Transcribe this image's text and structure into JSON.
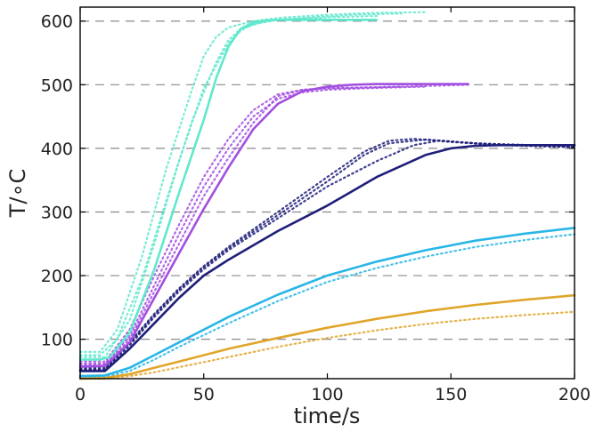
{
  "chart_data": {
    "type": "line",
    "title": "",
    "xlabel": "time/s",
    "ylabel": "T/∘C",
    "xlim": [
      0,
      200
    ],
    "ylim": [
      38,
      622
    ],
    "xticks": [
      0,
      50,
      100,
      150,
      200
    ],
    "yticks": [
      100,
      200,
      300,
      400,
      500,
      600
    ],
    "xtick_labels": [
      "0",
      "50",
      "100",
      "150",
      "200"
    ],
    "ytick_labels": [
      "100",
      "200",
      "300",
      "400",
      "500",
      "600"
    ],
    "grid": "horizontal-dashed",
    "legend": "none",
    "series": [
      {
        "color": "#5fe8cc",
        "style": "solid",
        "x": [
          0,
          8,
          12,
          20,
          30,
          40,
          50,
          55,
          60,
          65,
          70,
          75,
          80,
          90,
          100,
          110,
          120
        ],
        "y": [
          68,
          68,
          72,
          110,
          210,
          330,
          445,
          510,
          560,
          588,
          598,
          601,
          602,
          602,
          602,
          602,
          602
        ]
      },
      {
        "color": "#5fe8cc",
        "style": "dotted",
        "x": [
          0,
          8,
          15,
          25,
          35,
          45,
          50,
          55,
          60,
          70,
          80,
          100,
          120,
          140
        ],
        "y": [
          80,
          80,
          115,
          230,
          370,
          490,
          545,
          575,
          590,
          600,
          605,
          610,
          613,
          614
        ]
      },
      {
        "color": "#5fe8cc",
        "style": "dotted",
        "x": [
          0,
          8,
          15,
          25,
          35,
          45,
          55,
          60,
          65,
          75,
          90,
          110,
          130
        ],
        "y": [
          75,
          75,
          100,
          195,
          320,
          440,
          535,
          570,
          588,
          600,
          605,
          610,
          612
        ]
      },
      {
        "color": "#5fe8cc",
        "style": "dotted",
        "x": [
          0,
          10,
          20,
          30,
          40,
          50,
          60,
          65,
          70,
          80,
          100,
          120
        ],
        "y": [
          72,
          72,
          130,
          250,
          380,
          495,
          565,
          585,
          595,
          602,
          606,
          608
        ]
      },
      {
        "color": "#a24fe0",
        "style": "solid",
        "x": [
          0,
          10,
          20,
          30,
          40,
          50,
          60,
          70,
          80,
          90,
          100,
          110,
          120,
          130,
          140,
          150,
          157
        ],
        "y": [
          57,
          58,
          95,
          165,
          235,
          305,
          370,
          430,
          470,
          490,
          497,
          500,
          501,
          501,
          501,
          501,
          501
        ]
      },
      {
        "color": "#a24fe0",
        "style": "dotted",
        "x": [
          0,
          10,
          20,
          30,
          40,
          50,
          60,
          70,
          80,
          90,
          100,
          120,
          140,
          158
        ],
        "y": [
          65,
          65,
          115,
          200,
          280,
          355,
          415,
          460,
          485,
          492,
          495,
          496,
          498,
          500
        ]
      },
      {
        "color": "#a24fe0",
        "style": "dotted",
        "x": [
          0,
          10,
          20,
          30,
          40,
          50,
          60,
          70,
          80,
          90,
          100,
          120,
          140
        ],
        "y": [
          62,
          62,
          105,
          185,
          265,
          340,
          400,
          450,
          478,
          488,
          492,
          495,
          497
        ]
      },
      {
        "color": "#a24fe0",
        "style": "dotted",
        "x": [
          0,
          10,
          20,
          30,
          40,
          50,
          60,
          70,
          80,
          90,
          100,
          110,
          130
        ],
        "y": [
          60,
          60,
          100,
          175,
          250,
          325,
          385,
          440,
          482,
          492,
          494,
          495,
          497
        ]
      },
      {
        "color": "#1f1f7a",
        "style": "solid",
        "x": [
          0,
          10,
          20,
          30,
          40,
          50,
          60,
          80,
          100,
          120,
          140,
          150,
          160,
          170,
          180,
          200
        ],
        "y": [
          50,
          50,
          85,
          125,
          165,
          200,
          225,
          270,
          310,
          355,
          390,
          400,
          404,
          405,
          405,
          405
        ]
      },
      {
        "color": "#1f1f7a",
        "style": "dotted",
        "x": [
          0,
          10,
          20,
          30,
          40,
          50,
          60,
          80,
          100,
          115,
          125,
          135,
          150,
          170,
          200
        ],
        "y": [
          55,
          55,
          95,
          140,
          180,
          215,
          245,
          300,
          355,
          395,
          412,
          415,
          410,
          405,
          402
        ]
      },
      {
        "color": "#1f1f7a",
        "style": "dotted",
        "x": [
          0,
          10,
          20,
          30,
          40,
          50,
          60,
          80,
          100,
          120,
          135,
          145,
          160,
          180,
          200
        ],
        "y": [
          52,
          52,
          90,
          135,
          175,
          210,
          240,
          290,
          340,
          380,
          405,
          412,
          408,
          404,
          402
        ]
      },
      {
        "color": "#1f1f7a",
        "style": "dotted",
        "x": [
          0,
          10,
          20,
          30,
          40,
          50,
          60,
          80,
          100,
          115,
          125,
          140,
          160,
          200
        ],
        "y": [
          53,
          53,
          93,
          138,
          178,
          213,
          243,
          295,
          348,
          390,
          408,
          414,
          408,
          403
        ]
      },
      {
        "color": "#29b6e6",
        "style": "solid",
        "x": [
          0,
          10,
          20,
          30,
          40,
          60,
          80,
          100,
          120,
          140,
          160,
          180,
          200
        ],
        "y": [
          42,
          43,
          55,
          75,
          95,
          135,
          170,
          200,
          222,
          240,
          255,
          266,
          275
        ]
      },
      {
        "color": "#29b6e6",
        "style": "dotted",
        "x": [
          0,
          10,
          20,
          30,
          40,
          60,
          80,
          100,
          120,
          140,
          160,
          180,
          200
        ],
        "y": [
          40,
          41,
          50,
          68,
          88,
          125,
          160,
          190,
          212,
          230,
          245,
          256,
          265
        ]
      },
      {
        "color": "#e0a52a",
        "style": "solid",
        "x": [
          0,
          10,
          20,
          30,
          40,
          60,
          80,
          100,
          120,
          140,
          160,
          180,
          200
        ],
        "y": [
          38,
          39,
          45,
          55,
          65,
          85,
          102,
          118,
          132,
          144,
          154,
          162,
          169
        ]
      },
      {
        "color": "#e0a52a",
        "style": "dotted",
        "x": [
          0,
          10,
          20,
          30,
          40,
          60,
          80,
          100,
          120,
          140,
          160,
          180,
          200
        ],
        "y": [
          38,
          38,
          42,
          48,
          56,
          72,
          88,
          102,
          114,
          124,
          132,
          138,
          143
        ]
      }
    ]
  }
}
